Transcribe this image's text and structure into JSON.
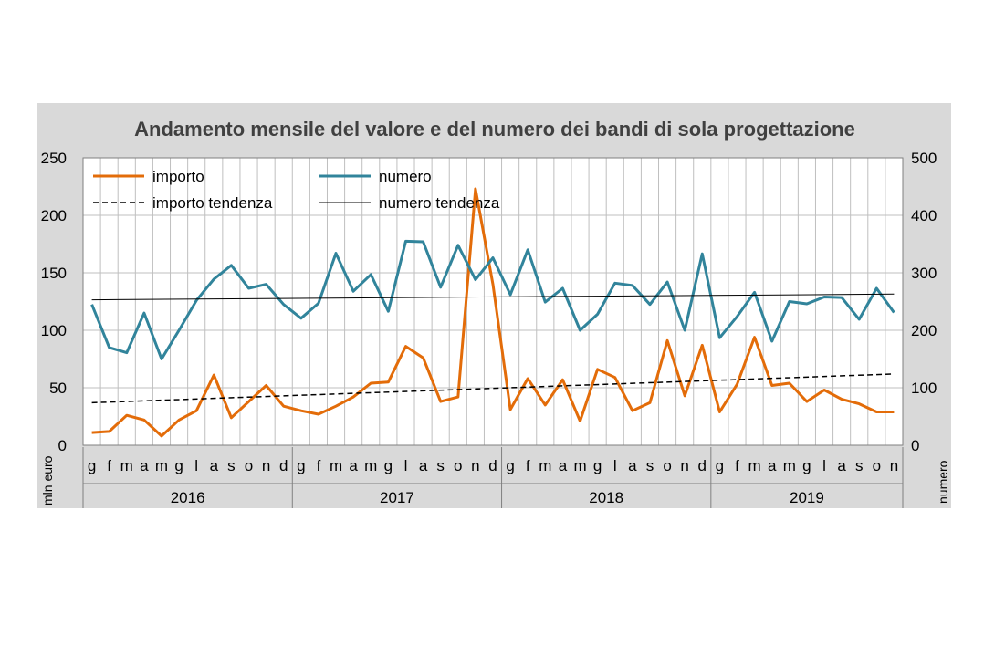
{
  "chart_data": {
    "type": "line",
    "title": "Andamento mensile del valore e del numero dei bandi di sola progettazione",
    "ylabel_left": "mln euro",
    "ylabel_right": "numero",
    "ylim_left": [
      0,
      250
    ],
    "ylim_right": [
      0,
      500
    ],
    "yticks_left": [
      "0",
      "50",
      "100",
      "150",
      "200",
      "250"
    ],
    "yticks_right": [
      "0",
      "100",
      "200",
      "300",
      "400",
      "500"
    ],
    "months": [
      "g",
      "f",
      "m",
      "a",
      "m",
      "g",
      "l",
      "a",
      "s",
      "o",
      "n",
      "d",
      "g",
      "f",
      "m",
      "a",
      "m",
      "g",
      "l",
      "a",
      "s",
      "o",
      "n",
      "d",
      "g",
      "f",
      "m",
      "a",
      "m",
      "g",
      "l",
      "a",
      "s",
      "o",
      "n",
      "d",
      "g",
      "f",
      "m",
      "a",
      "m",
      "g",
      "l",
      "a",
      "s",
      "o",
      "n"
    ],
    "years": [
      "2016",
      "2017",
      "2018",
      "2019"
    ],
    "grid": true,
    "legend_position": "top-left",
    "series": [
      {
        "name": "importo",
        "axis": "left",
        "color": "#e36c09",
        "style": "solid",
        "values": [
          11,
          12,
          26,
          22,
          8,
          22,
          30,
          61,
          24,
          38,
          52,
          34,
          30,
          27,
          34,
          42,
          54,
          55,
          86,
          76,
          38,
          42,
          223,
          140,
          31,
          58,
          35,
          57,
          21,
          66,
          59,
          30,
          37,
          91,
          43,
          87,
          29,
          53,
          94,
          52,
          54,
          38,
          48,
          40,
          36,
          29,
          29
        ]
      },
      {
        "name": "numero",
        "axis": "right",
        "color": "#31849b",
        "style": "solid",
        "values": [
          245,
          170,
          161,
          230,
          150,
          200,
          252,
          289,
          313,
          273,
          280,
          245,
          221,
          247,
          334,
          268,
          297,
          233,
          355,
          354,
          275,
          348,
          288,
          326,
          262,
          340,
          249,
          273,
          200,
          228,
          282,
          278,
          245,
          284,
          200,
          333,
          187,
          224,
          266,
          181,
          250,
          246,
          258,
          257,
          219,
          273,
          231
        ]
      },
      {
        "name": "importo tendenza",
        "axis": "left",
        "color": "#000000",
        "style": "dashed",
        "values": [
          37,
          62
        ]
      },
      {
        "name": "numero tendenza",
        "axis": "right",
        "color": "#000000",
        "style": "thin",
        "values": [
          253,
          263
        ]
      }
    ]
  }
}
